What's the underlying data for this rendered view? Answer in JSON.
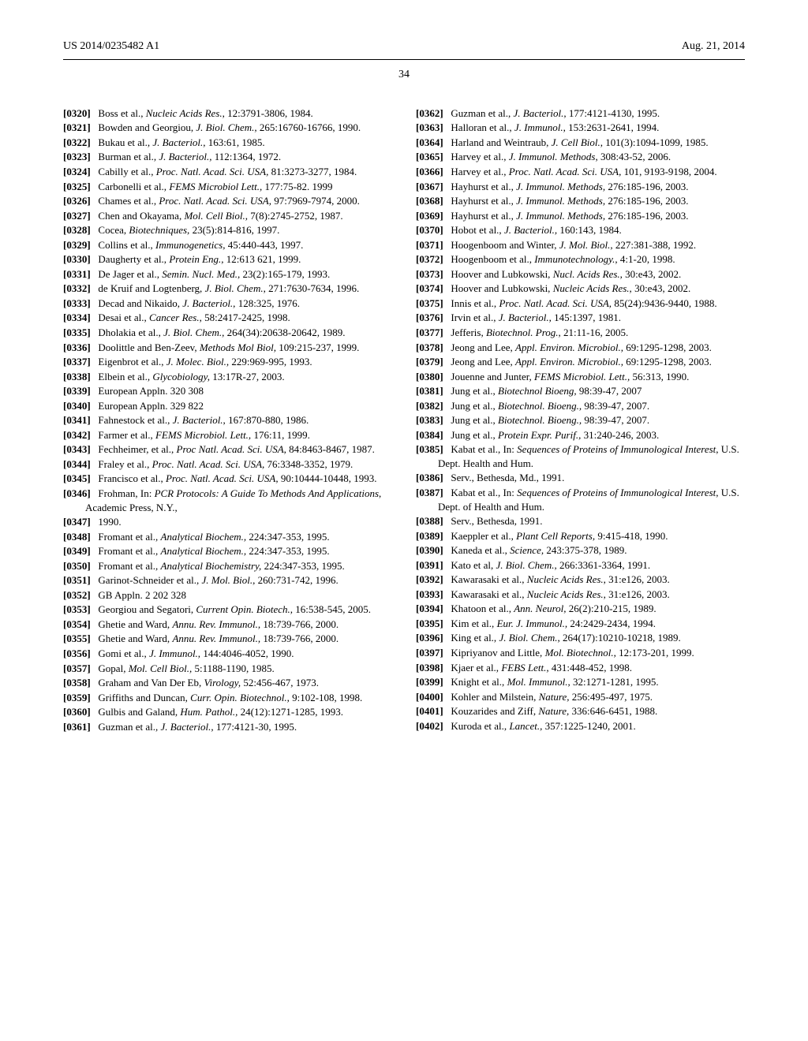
{
  "header": {
    "pub_number": "US 2014/0235482 A1",
    "date": "Aug. 21, 2014",
    "page": "34"
  },
  "references": [
    {
      "n": "[0320]",
      "t": "Boss et al., <i>Nucleic Acids Res.,</i> 12:3791-3806, 1984."
    },
    {
      "n": "[0321]",
      "t": "Bowden and Georgiou, <i>J. Biol. Chem.,</i> 265:16760-16766, 1990."
    },
    {
      "n": "[0322]",
      "t": "Bukau et al., <i>J. Bacteriol.,</i> 163:61, 1985."
    },
    {
      "n": "[0323]",
      "t": "Burman et al., <i>J. Bacteriol.,</i> 112:1364, 1972."
    },
    {
      "n": "[0324]",
      "t": "Cabilly et al., <i>Proc. Natl. Acad. Sci. USA,</i> 81:3273-3277, 1984."
    },
    {
      "n": "[0325]",
      "t": "Carbonelli et al., <i>FEMS Microbiol Lett.,</i> 177:75-82. 1999"
    },
    {
      "n": "[0326]",
      "t": "Chames et al., <i>Proc. Natl. Acad. Sci. USA,</i> 97:7969-7974, 2000."
    },
    {
      "n": "[0327]",
      "t": "Chen and Okayama, <i>Mol. Cell Biol.,</i> 7(8):2745-2752, 1987."
    },
    {
      "n": "[0328]",
      "t": "Cocea, <i>Biotechniques,</i> 23(5):814-816, 1997."
    },
    {
      "n": "[0329]",
      "t": "Collins et al., <i>Immunogenetics,</i> 45:440-443, 1997."
    },
    {
      "n": "[0330]",
      "t": "Daugherty et al., <i>Protein Eng.,</i> 12:613 621, 1999."
    },
    {
      "n": "[0331]",
      "t": "De Jager et al., <i>Semin. Nucl. Med.,</i> 23(2):165-179, 1993."
    },
    {
      "n": "[0332]",
      "t": "de Kruif and Logtenberg, <i>J. Biol. Chem.,</i> 271:7630-7634, 1996."
    },
    {
      "n": "[0333]",
      "t": "Decad and Nikaido, <i>J. Bacteriol.,</i> 128:325, 1976."
    },
    {
      "n": "[0334]",
      "t": "Desai et al., <i>Cancer Res.,</i> 58:2417-2425, 1998."
    },
    {
      "n": "[0335]",
      "t": "Dholakia et al., <i>J. Biol. Chem.,</i> 264(34):20638-20642, 1989."
    },
    {
      "n": "[0336]",
      "t": "Doolittle and Ben-Zeev, <i>Methods Mol Biol,</i> 109:215-237, 1999."
    },
    {
      "n": "[0337]",
      "t": "Eigenbrot et al., <i>J. Molec. Biol.,</i> 229:969-995, 1993."
    },
    {
      "n": "[0338]",
      "t": "Elbein et al., <i>Glycobiology,</i> 13:17R-27, 2003."
    },
    {
      "n": "[0339]",
      "t": "European Appln. 320 308"
    },
    {
      "n": "[0340]",
      "t": "European Appln. 329 822"
    },
    {
      "n": "[0341]",
      "t": "Fahnestock et al., <i>J. Bacteriol.,</i> 167:870-880, 1986."
    },
    {
      "n": "[0342]",
      "t": "Farmer et al., <i>FEMS Microbiol. Lett.,</i> 176:11, 1999."
    },
    {
      "n": "[0343]",
      "t": "Fechheimer, et al., <i>Proc Natl. Acad. Sci. USA,</i> 84:8463-8467, 1987."
    },
    {
      "n": "[0344]",
      "t": "Fraley et al., <i>Proc. Natl. Acad. Sci. USA,</i> 76:3348-3352, 1979."
    },
    {
      "n": "[0345]",
      "t": "Francisco et al., <i>Proc. Natl. Acad. Sci. USA,</i> 90:10444-10448, 1993."
    },
    {
      "n": "[0346]",
      "t": "Frohman, In: <i>PCR Protocols: A Guide To Methods And Applications</i>, Academic Press, N.Y.,"
    },
    {
      "n": "[0347]",
      "t": "1990."
    },
    {
      "n": "[0348]",
      "t": "Fromant et al., <i>Analytical Biochem.,</i> 224:347-353, 1995."
    },
    {
      "n": "[0349]",
      "t": "Fromant et al., <i>Analytical Biochem.,</i> 224:347-353, 1995."
    },
    {
      "n": "[0350]",
      "t": "Fromant et al., <i>Analytical Biochemistry,</i> 224:347-353, 1995."
    },
    {
      "n": "[0351]",
      "t": "Garinot-Schneider et al., <i>J. Mol. Biol.,</i> 260:731-742, 1996."
    },
    {
      "n": "[0352]",
      "t": "GB Appln. 2 202 328"
    },
    {
      "n": "[0353]",
      "t": "Georgiou and Segatori, <i>Current Opin. Biotech.,</i> 16:538-545, 2005."
    },
    {
      "n": "[0354]",
      "t": "Ghetie and Ward, <i>Annu. Rev. Immunol.,</i> 18:739-766, 2000."
    },
    {
      "n": "[0355]",
      "t": "Ghetie and Ward, <i>Annu. Rev. Immunol.,</i> 18:739-766, 2000."
    },
    {
      "n": "[0356]",
      "t": "Gomi et al., <i>J. Immunol.,</i> 144:4046-4052, 1990."
    },
    {
      "n": "[0357]",
      "t": "Gopal, <i>Mol. Cell Biol.,</i> 5:1188-1190, 1985."
    },
    {
      "n": "[0358]",
      "t": "Graham and Van Der Eb, <i>Virology,</i> 52:456-467, 1973."
    },
    {
      "n": "[0359]",
      "t": "Griffiths and Duncan, <i>Curr. Opin. Biotechnol.,</i> 9:102-108, 1998."
    },
    {
      "n": "[0360]",
      "t": "Gulbis and Galand, <i>Hum. Pathol.,</i> 24(12):1271-1285, 1993."
    },
    {
      "n": "[0361]",
      "t": "Guzman et al., <i>J. Bacteriol.,</i> 177:4121-30, 1995."
    },
    {
      "n": "[0362]",
      "t": "Guzman et al., <i>J. Bacteriol.,</i> 177:4121-4130, 1995."
    },
    {
      "n": "[0363]",
      "t": "Halloran et al., <i>J. Immunol.,</i> 153:2631-2641, 1994."
    },
    {
      "n": "[0364]",
      "t": "Harland and Weintraub, <i>J. Cell Biol.,</i> 101(3):1094-1099, 1985."
    },
    {
      "n": "[0365]",
      "t": "Harvey et al., <i>J. Immunol. Methods,</i> 308:43-52, 2006."
    },
    {
      "n": "[0366]",
      "t": "Harvey et al., <i>Proc. Natl. Acad. Sci. USA,</i> 101, 9193-9198, 2004."
    },
    {
      "n": "[0367]",
      "t": "Hayhurst et al., <i>J. Immunol. Methods,</i> 276:185-196, 2003."
    },
    {
      "n": "[0368]",
      "t": "Hayhurst et al., <i>J. Immunol. Methods,</i> 276:185-196, 2003."
    },
    {
      "n": "[0369]",
      "t": "Hayhurst et al., <i>J. Immunol. Methods,</i> 276:185-196, 2003."
    },
    {
      "n": "[0370]",
      "t": "Hobot et al., <i>J. Bacteriol.,</i> 160:143, 1984."
    },
    {
      "n": "[0371]",
      "t": "Hoogenboom and Winter, <i>J. Mol. Biol.,</i> 227:381-388, 1992."
    },
    {
      "n": "[0372]",
      "t": "Hoogenboom et al., <i>Immunotechnology.,</i> 4:1-20, 1998."
    },
    {
      "n": "[0373]",
      "t": "Hoover and Lubkowski, <i>Nucl. Acids Res.,</i> 30:e43, 2002."
    },
    {
      "n": "[0374]",
      "t": "Hoover and Lubkowski, <i>Nucleic Acids Res.,</i> 30:e43, 2002."
    },
    {
      "n": "[0375]",
      "t": "Innis et al., <i>Proc. Natl. Acad. Sci. USA,</i> 85(24):9436-9440, 1988."
    },
    {
      "n": "[0376]",
      "t": "Irvin et al., <i>J. Bacteriol.,</i> 145:1397, 1981."
    },
    {
      "n": "[0377]",
      "t": "Jefferis, <i>Biotechnol. Prog.,</i> 21:11-16, 2005."
    },
    {
      "n": "[0378]",
      "t": "Jeong and Lee, <i>Appl. Environ. Microbiol.,</i> 69:1295-1298, 2003."
    },
    {
      "n": "[0379]",
      "t": "Jeong and Lee, <i>Appl. Environ. Microbiol.,</i> 69:1295-1298, 2003."
    },
    {
      "n": "[0380]",
      "t": "Jouenne and Junter, <i>FEMS Microbiol. Lett.,</i> 56:313, 1990."
    },
    {
      "n": "[0381]",
      "t": "Jung et al., <i>Biotechnol Bioeng,</i> 98:39-47, 2007"
    },
    {
      "n": "[0382]",
      "t": "Jung et al., <i>Biotechnol. Bioeng.,</i> 98:39-47, 2007."
    },
    {
      "n": "[0383]",
      "t": "Jung et al., <i>Biotechnol. Bioeng.,</i> 98:39-47, 2007."
    },
    {
      "n": "[0384]",
      "t": "Jung et al., <i>Protein Expr. Purif.,</i> 31:240-246, 2003."
    },
    {
      "n": "[0385]",
      "t": "Kabat et al., In: <i>Sequences of Proteins of Immunological Interest</i>, U.S. Dept. Health and Hum."
    },
    {
      "n": "[0386]",
      "t": "Serv., Bethesda, Md., 1991."
    },
    {
      "n": "[0387]",
      "t": "Kabat et al., In: <i>Sequences of Proteins of Immunological Interest</i>, U.S. Dept. of Health and Hum."
    },
    {
      "n": "[0388]",
      "t": "Serv., Bethesda, 1991."
    },
    {
      "n": "[0389]",
      "t": "Kaeppler et al., <i>Plant Cell Reports,</i> 9:415-418, 1990."
    },
    {
      "n": "[0390]",
      "t": "Kaneda et al., <i>Science,</i> 243:375-378, 1989."
    },
    {
      "n": "[0391]",
      "t": "Kato et al, <i>J. Biol. Chem.,</i> 266:3361-3364, 1991."
    },
    {
      "n": "[0392]",
      "t": "Kawarasaki et al., <i>Nucleic Acids Res.,</i> 31:e126, 2003."
    },
    {
      "n": "[0393]",
      "t": "Kawarasaki et al., <i>Nucleic Acids Res.,</i> 31:e126, 2003."
    },
    {
      "n": "[0394]",
      "t": "Khatoon et al., <i>Ann. Neurol,</i> 26(2):210-215, 1989."
    },
    {
      "n": "[0395]",
      "t": "Kim et al., <i>Eur. J. Immunol.,</i> 24:2429-2434, 1994."
    },
    {
      "n": "[0396]",
      "t": "King et al., <i>J. Biol. Chem.,</i> 264(17):10210-10218, 1989."
    },
    {
      "n": "[0397]",
      "t": "Kipriyanov and Little, <i>Mol. Biotechnol.,</i> 12:173-201, 1999."
    },
    {
      "n": "[0398]",
      "t": "Kjaer et al., <i>FEBS Lett.,</i> 431:448-452, 1998."
    },
    {
      "n": "[0399]",
      "t": "Knight et al., <i>Mol. Immunol.,</i> 32:1271-1281, 1995."
    },
    {
      "n": "[0400]",
      "t": "Kohler and Milstein, <i>Nature,</i> 256:495-497, 1975."
    },
    {
      "n": "[0401]",
      "t": "Kouzarides and Ziff, <i>Nature,</i> 336:646-6451, 1988."
    },
    {
      "n": "[0402]",
      "t": "Kuroda et al., <i>Lancet.,</i> 357:1225-1240, 2001."
    }
  ]
}
